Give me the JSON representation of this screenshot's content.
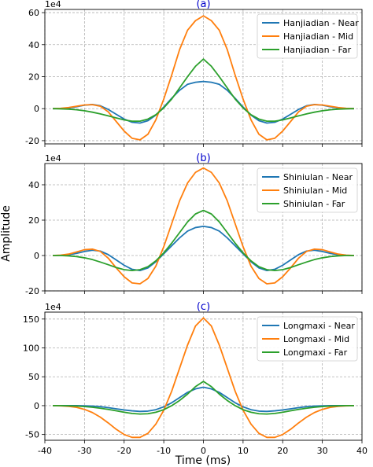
{
  "figure": {
    "ylabel": "Amplitude",
    "xlabel": "Time (ms)",
    "xticks": [
      -40,
      -30,
      -20,
      -10,
      0,
      10,
      20,
      30,
      40
    ]
  },
  "colors": {
    "near": "#1f77b4",
    "mid": "#ff7f0e",
    "far": "#2ca02c",
    "title": "#0000cc",
    "grid": "#b0b0b0"
  },
  "chart_data": [
    {
      "type": "line",
      "title": "(a)",
      "ylabel": "Amplitude",
      "y_multiplier_label": "1e4",
      "xlim": [
        -40,
        40
      ],
      "ylim": [
        -22,
        62
      ],
      "yticks": [
        -20,
        0,
        20,
        40,
        60
      ],
      "grid": true,
      "legend_position": "top-right",
      "x": [
        -38,
        -36,
        -34,
        -32,
        -30,
        -28,
        -26,
        -24,
        -22,
        -20,
        -18,
        -16,
        -14,
        -12,
        -10,
        -8,
        -6,
        -4,
        -2,
        0,
        2,
        4,
        6,
        8,
        10,
        12,
        14,
        16,
        18,
        20,
        22,
        24,
        26,
        28,
        30,
        32,
        34,
        36,
        38
      ],
      "series": [
        {
          "name": "Hanjiadian - Near",
          "values": [
            0,
            0.1,
            0.4,
            1.2,
            2.2,
            2.6,
            1.8,
            -0.5,
            -3.5,
            -6.5,
            -8.5,
            -9,
            -7.5,
            -4,
            1,
            6.5,
            11.5,
            15.2,
            16.5,
            17,
            16.5,
            15.2,
            11.5,
            6.5,
            1,
            -4,
            -7.5,
            -9,
            -8.5,
            -6.5,
            -3.5,
            -0.5,
            1.8,
            2.6,
            2.2,
            1.2,
            0.4,
            0.1,
            0
          ]
        },
        {
          "name": "Hanjiadian - Mid",
          "values": [
            0,
            0.2,
            0.7,
            1.5,
            2.3,
            2.5,
            1.5,
            -2,
            -8,
            -14,
            -18.5,
            -19.5,
            -16,
            -7,
            6,
            21,
            37,
            49,
            55,
            58,
            55,
            49,
            37,
            21,
            6,
            -7,
            -16,
            -19.5,
            -18.5,
            -14,
            -8,
            -2,
            1.5,
            2.5,
            2.3,
            1.5,
            0.7,
            0.2,
            0
          ]
        },
        {
          "name": "Hanjiadian - Far",
          "values": [
            0,
            -0.1,
            -0.3,
            -0.7,
            -1.3,
            -2.2,
            -3.3,
            -4.5,
            -5.8,
            -7,
            -7.8,
            -7.8,
            -6.5,
            -3.8,
            0.5,
            6,
            13,
            20,
            26.5,
            31,
            26.5,
            20,
            13,
            6,
            0.5,
            -3.8,
            -6.5,
            -7.8,
            -7.8,
            -7,
            -5.8,
            -4.5,
            -3.3,
            -2.2,
            -1.3,
            -0.7,
            -0.3,
            -0.1,
            0
          ]
        }
      ]
    },
    {
      "type": "line",
      "title": "(b)",
      "ylabel": "Amplitude",
      "y_multiplier_label": "1e4",
      "xlim": [
        -40,
        40
      ],
      "ylim": [
        -20,
        52
      ],
      "yticks": [
        -20,
        0,
        20,
        40
      ],
      "grid": true,
      "legend_position": "top-right",
      "x": [
        -38,
        -36,
        -34,
        -32,
        -30,
        -28,
        -26,
        -24,
        -22,
        -20,
        -18,
        -16,
        -14,
        -12,
        -10,
        -8,
        -6,
        -4,
        -2,
        0,
        2,
        4,
        6,
        8,
        10,
        12,
        14,
        16,
        18,
        20,
        22,
        24,
        26,
        28,
        30,
        32,
        34,
        36,
        38
      ],
      "series": [
        {
          "name": "Shiniulan - Near",
          "values": [
            0,
            0.1,
            0.4,
            1.2,
            2.3,
            3,
            2.5,
            0.5,
            -2.5,
            -5.5,
            -7.8,
            -8.5,
            -7,
            -3.5,
            1,
            5.5,
            10,
            13.8,
            15.8,
            16.5,
            15.8,
            13.8,
            10,
            5.5,
            1,
            -3.5,
            -7,
            -8.5,
            -7.8,
            -5.5,
            -2.5,
            0.5,
            2.5,
            3,
            2.3,
            1.2,
            0.4,
            0.1,
            0
          ]
        },
        {
          "name": "Shiniulan - Mid",
          "values": [
            0,
            0.2,
            0.8,
            2,
            3.3,
            3.6,
            2.3,
            -1.5,
            -7,
            -12,
            -15.5,
            -16,
            -13,
            -6,
            5,
            18,
            31,
            41,
            47,
            49.5,
            47,
            41,
            31,
            18,
            5,
            -6,
            -13,
            -16,
            -15.5,
            -12,
            -7,
            -1.5,
            2.3,
            3.6,
            3.3,
            2,
            0.8,
            0.2,
            0
          ]
        },
        {
          "name": "Shiniulan - Far",
          "values": [
            0,
            0,
            -0.2,
            -0.6,
            -1.3,
            -2.3,
            -3.7,
            -5.2,
            -6.8,
            -8,
            -8.5,
            -8,
            -6.3,
            -3,
            1.5,
            7,
            13,
            19,
            23.5,
            25.5,
            23.5,
            19,
            13,
            7,
            1.5,
            -3,
            -6.3,
            -8,
            -8.5,
            -8,
            -6.8,
            -5.2,
            -3.7,
            -2.3,
            -1.3,
            -0.6,
            -0.2,
            0,
            0
          ]
        }
      ]
    },
    {
      "type": "line",
      "title": "(c)",
      "ylabel": "Amplitude",
      "y_multiplier_label": "1e4",
      "xlim": [
        -40,
        40
      ],
      "ylim": [
        -60,
        162
      ],
      "yticks": [
        -50,
        0,
        50,
        100,
        150
      ],
      "grid": true,
      "legend_position": "top-right",
      "x": [
        -38,
        -36,
        -34,
        -32,
        -30,
        -28,
        -26,
        -24,
        -22,
        -20,
        -18,
        -16,
        -14,
        -12,
        -10,
        -8,
        -6,
        -4,
        -2,
        0,
        2,
        4,
        6,
        8,
        10,
        12,
        14,
        16,
        18,
        20,
        22,
        24,
        26,
        28,
        30,
        32,
        34,
        36,
        38
      ],
      "series": [
        {
          "name": "Longmaxi - Near",
          "values": [
            0,
            0,
            0,
            0,
            -0.2,
            -0.8,
            -1.8,
            -3.5,
            -5.5,
            -7.5,
            -9,
            -10,
            -9.5,
            -7,
            -2,
            5,
            14,
            23,
            29,
            32,
            29,
            23,
            14,
            5,
            -2,
            -7,
            -9.5,
            -10,
            -9,
            -7.5,
            -5.5,
            -3.5,
            -1.8,
            -0.8,
            -0.2,
            0,
            0,
            0,
            0
          ]
        },
        {
          "name": "Longmaxi - Mid",
          "values": [
            0,
            -0.3,
            -1.2,
            -3,
            -6.5,
            -12,
            -20,
            -30,
            -41,
            -50,
            -55,
            -55,
            -48,
            -32,
            -8,
            25,
            65,
            105,
            138,
            152,
            138,
            105,
            65,
            25,
            -8,
            -32,
            -48,
            -55,
            -55,
            -50,
            -41,
            -30,
            -20,
            -12,
            -6.5,
            -3,
            -1.2,
            -0.3,
            0
          ]
        },
        {
          "name": "Longmaxi - Far",
          "values": [
            0,
            -0.1,
            -0.3,
            -0.8,
            -1.6,
            -2.8,
            -4.5,
            -6.5,
            -9,
            -11.5,
            -13.5,
            -14.5,
            -14,
            -11.5,
            -7,
            0,
            9,
            20,
            33,
            42,
            33,
            20,
            9,
            0,
            -7,
            -11.5,
            -14,
            -14.5,
            -13.5,
            -11.5,
            -9,
            -6.5,
            -4.5,
            -2.8,
            -1.6,
            -0.8,
            -0.3,
            -0.1,
            0
          ]
        }
      ]
    }
  ]
}
